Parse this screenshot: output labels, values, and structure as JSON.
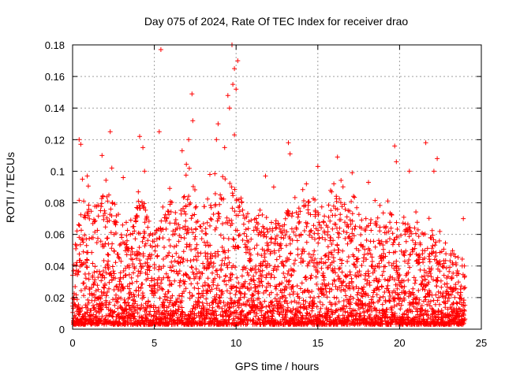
{
  "chart_data": {
    "type": "scatter",
    "title": "Day 075 of 2024, Rate Of TEC Index for receiver drao",
    "xlabel": "GPS time / hours",
    "ylabel": "ROTI / TECUs",
    "xlim": [
      0,
      25
    ],
    "ylim": [
      0,
      0.18
    ],
    "x_ticks": [
      "0",
      "5",
      "10",
      "15",
      "20",
      "25"
    ],
    "y_ticks": [
      "0",
      "0.02",
      "0.04",
      "0.06",
      "0.08",
      "0.1",
      "0.12",
      "0.14",
      "0.16",
      "0.18"
    ],
    "grid": true,
    "marker": "+",
    "color": "#ff0000",
    "envelope": {
      "x": [
        0.0,
        0.5,
        1.0,
        1.5,
        2.0,
        2.5,
        3.0,
        3.5,
        4.0,
        4.5,
        5.0,
        5.5,
        6.0,
        6.5,
        7.0,
        7.5,
        8.0,
        8.5,
        9.0,
        9.5,
        10.0,
        10.5,
        11.0,
        11.5,
        12.0,
        12.5,
        13.0,
        13.5,
        14.0,
        14.5,
        15.0,
        15.5,
        16.0,
        16.5,
        17.0,
        17.5,
        18.0,
        18.5,
        19.0,
        19.5,
        20.0,
        20.5,
        21.0,
        21.5,
        22.0,
        22.5,
        23.0,
        23.5,
        24.0
      ],
      "y": [
        0.045,
        0.075,
        0.08,
        0.075,
        0.085,
        0.08,
        0.06,
        0.055,
        0.085,
        0.07,
        0.06,
        0.065,
        0.08,
        0.07,
        0.09,
        0.075,
        0.065,
        0.08,
        0.09,
        0.1,
        0.085,
        0.08,
        0.07,
        0.065,
        0.06,
        0.065,
        0.075,
        0.07,
        0.075,
        0.08,
        0.07,
        0.065,
        0.085,
        0.08,
        0.075,
        0.07,
        0.065,
        0.07,
        0.065,
        0.07,
        0.07,
        0.065,
        0.065,
        0.06,
        0.06,
        0.055,
        0.05,
        0.045,
        0.04
      ]
    },
    "outliers": [
      {
        "x": 0.4,
        "y": 0.12
      },
      {
        "x": 0.5,
        "y": 0.117
      },
      {
        "x": 0.6,
        "y": 0.095
      },
      {
        "x": 1.8,
        "y": 0.11
      },
      {
        "x": 2.3,
        "y": 0.125
      },
      {
        "x": 2.4,
        "y": 0.102
      },
      {
        "x": 4.1,
        "y": 0.122
      },
      {
        "x": 4.3,
        "y": 0.115
      },
      {
        "x": 4.4,
        "y": 0.1
      },
      {
        "x": 5.4,
        "y": 0.177
      },
      {
        "x": 5.3,
        "y": 0.125
      },
      {
        "x": 6.7,
        "y": 0.113
      },
      {
        "x": 7.1,
        "y": 0.12
      },
      {
        "x": 7.3,
        "y": 0.149
      },
      {
        "x": 7.35,
        "y": 0.132
      },
      {
        "x": 8.9,
        "y": 0.13
      },
      {
        "x": 8.8,
        "y": 0.12
      },
      {
        "x": 9.3,
        "y": 0.115
      },
      {
        "x": 9.5,
        "y": 0.148
      },
      {
        "x": 9.6,
        "y": 0.14
      },
      {
        "x": 9.8,
        "y": 0.155
      },
      {
        "x": 9.9,
        "y": 0.165
      },
      {
        "x": 10.0,
        "y": 0.152
      },
      {
        "x": 9.75,
        "y": 0.18
      },
      {
        "x": 10.1,
        "y": 0.17
      },
      {
        "x": 9.9,
        "y": 0.123
      },
      {
        "x": 13.2,
        "y": 0.118
      },
      {
        "x": 13.3,
        "y": 0.111
      },
      {
        "x": 15.0,
        "y": 0.103
      },
      {
        "x": 16.2,
        "y": 0.109
      },
      {
        "x": 17.1,
        "y": 0.099
      },
      {
        "x": 19.7,
        "y": 0.116
      },
      {
        "x": 19.8,
        "y": 0.106
      },
      {
        "x": 21.6,
        "y": 0.118
      },
      {
        "x": 22.3,
        "y": 0.108
      },
      {
        "x": 22.1,
        "y": 0.1
      },
      {
        "x": 0.9,
        "y": 0.097
      },
      {
        "x": 3.1,
        "y": 0.096
      },
      {
        "x": 11.8,
        "y": 0.097
      },
      {
        "x": 14.3,
        "y": 0.092
      },
      {
        "x": 18.1,
        "y": 0.093
      },
      {
        "x": 20.6,
        "y": 0.1
      },
      {
        "x": 23.9,
        "y": 0.07
      },
      {
        "x": 12.3,
        "y": 0.09
      },
      {
        "x": 8.4,
        "y": 0.098
      }
    ],
    "sampling": {
      "x_step": 0.02,
      "points_per_step": 3
    }
  }
}
